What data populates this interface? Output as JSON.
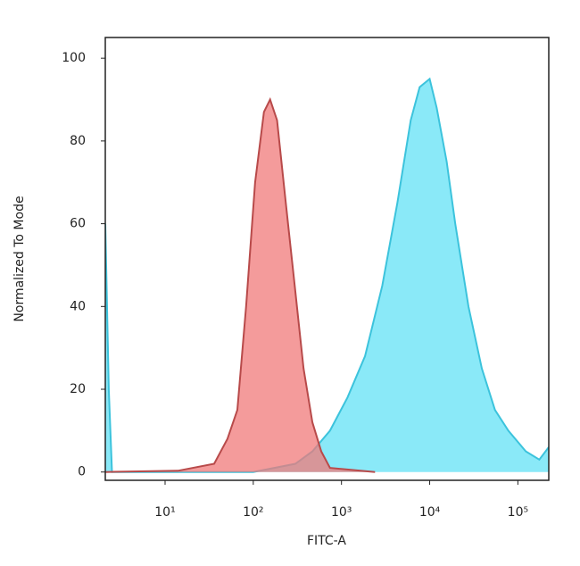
{
  "chart_data": {
    "type": "area",
    "xlabel": "FITC-A",
    "ylabel": "Normalized To Mode",
    "xscale": "log",
    "xlim": [
      2.1,
      224000
    ],
    "ylim": [
      -2,
      105
    ],
    "xticks": [
      {
        "value": 10,
        "label": "10¹"
      },
      {
        "value": 100,
        "label": "10²"
      },
      {
        "value": 1000,
        "label": "10³"
      },
      {
        "value": 10000,
        "label": "10⁴"
      },
      {
        "value": 100000,
        "label": "10⁵"
      }
    ],
    "yticks": [
      0,
      20,
      40,
      60,
      80,
      100
    ],
    "grid": false,
    "series": [
      {
        "color": "#3cc3dc",
        "fill": "#84e8f8",
        "x": [
          2.1,
          2.3,
          2.5,
          100,
          300,
          468,
          741,
          1170,
          1850,
          2900,
          4300,
          6100,
          7700,
          10000,
          12000,
          15600,
          19500,
          27500,
          39000,
          55000,
          78000,
          123000,
          175000,
          224000
        ],
        "values": [
          60,
          20,
          0,
          0,
          2,
          5,
          10,
          18,
          28,
          45,
          65,
          85,
          93,
          95,
          88,
          75,
          60,
          40,
          25,
          15,
          10,
          5,
          3,
          6
        ]
      },
      {
        "color": "#b84a4a",
        "fill": "#f07a7a",
        "x": [
          2.1,
          14,
          36,
          51,
          66,
          83,
          105,
          132,
          155,
          186,
          234,
          295,
          372,
          468,
          589,
          741,
          2400
        ],
        "values": [
          0,
          0.3,
          2,
          8,
          15,
          40,
          70,
          87,
          90,
          85,
          65,
          45,
          25,
          12,
          5,
          1,
          0
        ]
      }
    ]
  }
}
